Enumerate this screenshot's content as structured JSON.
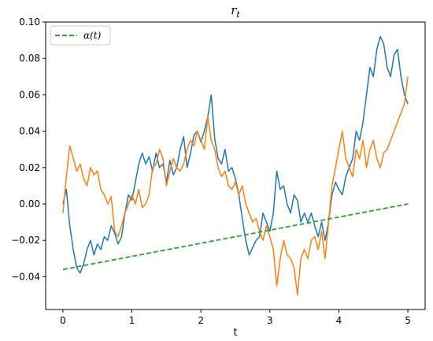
{
  "chart_data": {
    "type": "line",
    "title_main": "r",
    "title_sub": "t",
    "xlabel": "t",
    "ylabel": "",
    "xlim": [
      -0.25,
      5.25
    ],
    "ylim": [
      -0.058,
      0.1
    ],
    "x_ticks": [
      0,
      1,
      2,
      3,
      4,
      5
    ],
    "x_tick_labels": [
      "0",
      "1",
      "2",
      "3",
      "4",
      "5"
    ],
    "y_ticks": [
      -0.04,
      -0.02,
      0.0,
      0.02,
      0.04,
      0.06,
      0.08,
      0.1
    ],
    "y_tick_labels": [
      "−0.04",
      "−0.02",
      "0.00",
      "0.02",
      "0.04",
      "0.06",
      "0.08",
      "0.10"
    ],
    "grid": false,
    "legend_position": "top-left",
    "series": [
      {
        "color": "#1f77b4",
        "style": "solid",
        "x": [
          0.0,
          0.05,
          0.1,
          0.15,
          0.2,
          0.25,
          0.3,
          0.35,
          0.4,
          0.45,
          0.5,
          0.55,
          0.6,
          0.65,
          0.7,
          0.75,
          0.8,
          0.85,
          0.9,
          0.95,
          1.0,
          1.05,
          1.1,
          1.15,
          1.2,
          1.25,
          1.3,
          1.35,
          1.4,
          1.45,
          1.5,
          1.55,
          1.6,
          1.65,
          1.7,
          1.75,
          1.8,
          1.85,
          1.9,
          1.95,
          2.0,
          2.05,
          2.1,
          2.15,
          2.2,
          2.25,
          2.3,
          2.35,
          2.4,
          2.45,
          2.5,
          2.55,
          2.6,
          2.65,
          2.7,
          2.75,
          2.8,
          2.85,
          2.9,
          2.95,
          3.0,
          3.05,
          3.1,
          3.15,
          3.2,
          3.25,
          3.3,
          3.35,
          3.4,
          3.45,
          3.5,
          3.55,
          3.6,
          3.65,
          3.7,
          3.75,
          3.8,
          3.85,
          3.9,
          3.95,
          4.0,
          4.05,
          4.1,
          4.15,
          4.2,
          4.25,
          4.3,
          4.35,
          4.4,
          4.45,
          4.5,
          4.55,
          4.6,
          4.65,
          4.7,
          4.75,
          4.8,
          4.85,
          4.9,
          4.95,
          5.0
        ],
        "y": [
          0.0,
          0.008,
          -0.012,
          -0.025,
          -0.035,
          -0.038,
          -0.033,
          -0.025,
          -0.02,
          -0.028,
          -0.022,
          -0.025,
          -0.018,
          -0.02,
          -0.012,
          -0.016,
          -0.022,
          -0.018,
          -0.005,
          0.005,
          0.002,
          0.012,
          0.022,
          0.028,
          0.022,
          0.026,
          0.018,
          0.028,
          0.02,
          0.022,
          0.012,
          0.024,
          0.016,
          0.02,
          0.03,
          0.037,
          0.02,
          0.028,
          0.038,
          0.04,
          0.034,
          0.04,
          0.048,
          0.06,
          0.036,
          0.025,
          0.022,
          0.03,
          0.018,
          0.02,
          0.014,
          0.005,
          -0.008,
          -0.02,
          -0.028,
          -0.024,
          -0.02,
          -0.018,
          -0.005,
          -0.01,
          -0.015,
          -0.005,
          0.018,
          0.008,
          0.01,
          0.0,
          -0.005,
          0.005,
          0.002,
          -0.01,
          -0.005,
          -0.01,
          -0.005,
          -0.012,
          -0.018,
          -0.01,
          -0.02,
          -0.01,
          0.005,
          0.012,
          0.008,
          0.005,
          0.015,
          0.02,
          0.025,
          0.04,
          0.035,
          0.045,
          0.06,
          0.075,
          0.07,
          0.085,
          0.092,
          0.088,
          0.075,
          0.07,
          0.082,
          0.085,
          0.07,
          0.06,
          0.055
        ]
      },
      {
        "color": "#ff7f0e",
        "style": "solid",
        "x": [
          0.0,
          0.05,
          0.1,
          0.15,
          0.2,
          0.25,
          0.3,
          0.35,
          0.4,
          0.45,
          0.5,
          0.55,
          0.6,
          0.65,
          0.7,
          0.75,
          0.8,
          0.85,
          0.9,
          0.95,
          1.0,
          1.05,
          1.1,
          1.15,
          1.2,
          1.25,
          1.3,
          1.35,
          1.4,
          1.45,
          1.5,
          1.55,
          1.6,
          1.65,
          1.7,
          1.75,
          1.8,
          1.85,
          1.9,
          1.95,
          2.0,
          2.05,
          2.1,
          2.15,
          2.2,
          2.25,
          2.3,
          2.35,
          2.4,
          2.45,
          2.5,
          2.55,
          2.6,
          2.65,
          2.7,
          2.75,
          2.8,
          2.85,
          2.9,
          2.95,
          3.0,
          3.05,
          3.1,
          3.15,
          3.2,
          3.25,
          3.3,
          3.35,
          3.4,
          3.45,
          3.5,
          3.55,
          3.6,
          3.65,
          3.7,
          3.75,
          3.8,
          3.85,
          3.9,
          3.95,
          4.0,
          4.05,
          4.1,
          4.15,
          4.2,
          4.25,
          4.3,
          4.35,
          4.4,
          4.45,
          4.5,
          4.55,
          4.6,
          4.65,
          4.7,
          4.75,
          4.8,
          4.85,
          4.9,
          4.95,
          5.0
        ],
        "y": [
          -0.005,
          0.015,
          0.032,
          0.025,
          0.018,
          0.022,
          0.014,
          0.01,
          0.02,
          0.016,
          0.018,
          0.008,
          0.005,
          0.0,
          0.004,
          -0.015,
          -0.018,
          -0.012,
          -0.005,
          0.0,
          0.005,
          0.0,
          0.008,
          -0.002,
          0.0,
          0.005,
          0.02,
          0.022,
          0.03,
          0.025,
          0.01,
          0.018,
          0.025,
          0.02,
          0.018,
          0.022,
          0.03,
          0.035,
          0.032,
          0.04,
          0.035,
          0.03,
          0.048,
          0.035,
          0.03,
          0.02,
          0.015,
          0.018,
          0.01,
          0.008,
          0.012,
          0.005,
          0.01,
          0.0,
          -0.005,
          -0.01,
          -0.008,
          -0.015,
          -0.02,
          -0.012,
          -0.018,
          -0.025,
          -0.045,
          -0.03,
          -0.02,
          -0.028,
          -0.03,
          -0.035,
          -0.05,
          -0.03,
          -0.025,
          -0.03,
          -0.02,
          -0.018,
          -0.025,
          -0.015,
          -0.03,
          -0.01,
          0.01,
          0.02,
          0.03,
          0.04,
          0.025,
          0.02,
          0.015,
          0.03,
          0.025,
          0.035,
          0.02,
          0.03,
          0.035,
          0.025,
          0.02,
          0.028,
          0.03,
          0.035,
          0.04,
          0.045,
          0.05,
          0.055,
          0.07
        ]
      },
      {
        "name": "α(t)",
        "color": "#2ca02c",
        "style": "dashed",
        "x": [
          0.0,
          5.0
        ],
        "y": [
          -0.036,
          0.0
        ]
      }
    ]
  }
}
